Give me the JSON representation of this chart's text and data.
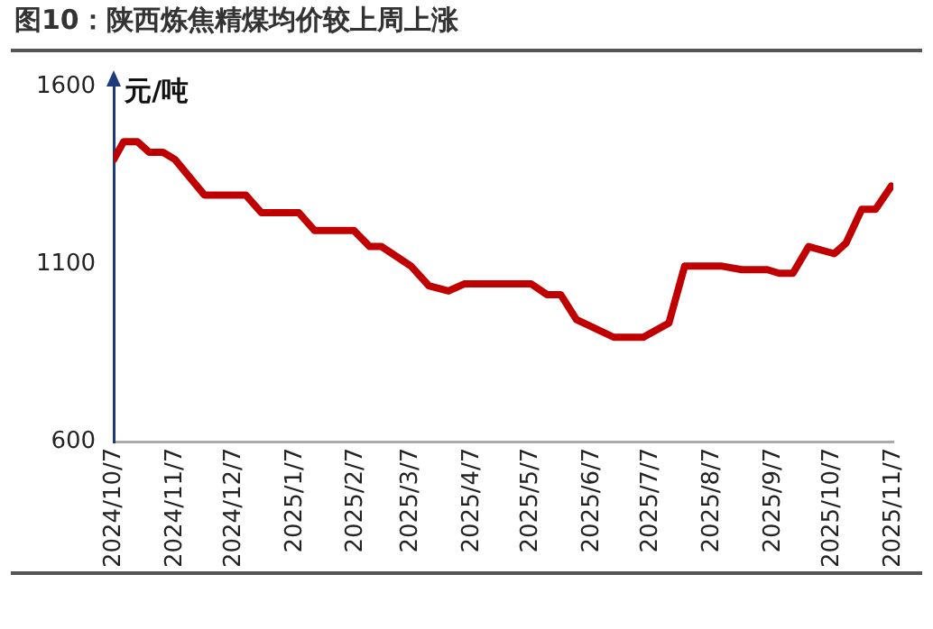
{
  "chart_data": {
    "type": "line",
    "title": "图10：陕西炼焦精煤均价较上周上涨",
    "ylabel": "元/吨",
    "x": [
      "2024-10-07",
      "2024-10-12",
      "2024-10-19",
      "2024-10-25",
      "2024-11-01",
      "2024-11-07",
      "2024-11-22",
      "2024-12-13",
      "2024-12-21",
      "2025-01-09",
      "2025-01-17",
      "2025-02-06",
      "2025-02-14",
      "2025-02-20",
      "2025-03-07",
      "2025-03-16",
      "2025-03-26",
      "2025-04-03",
      "2025-05-07",
      "2025-05-15",
      "2025-05-22",
      "2025-05-30",
      "2025-06-18",
      "2025-07-03",
      "2025-07-16",
      "2025-07-24",
      "2025-08-12",
      "2025-08-22",
      "2025-09-04",
      "2025-09-10",
      "2025-09-17",
      "2025-09-25",
      "2025-10-08",
      "2025-10-14",
      "2025-10-22",
      "2025-10-29",
      "2025-11-06"
    ],
    "series": [
      {
        "color": "#c00000",
        "values": [
          1395,
          1445,
          1445,
          1415,
          1415,
          1395,
          1295,
          1295,
          1245,
          1245,
          1195,
          1195,
          1150,
          1150,
          1095,
          1040,
          1025,
          1045,
          1045,
          1015,
          1015,
          945,
          895,
          895,
          935,
          1095,
          1095,
          1085,
          1085,
          1075,
          1075,
          1150,
          1130,
          1160,
          1255,
          1255,
          1320
        ]
      }
    ],
    "xlim": [
      "2024-10-07",
      "2025-11-07"
    ],
    "xticks": [
      {
        "value": "2024-10-07",
        "label": "2024/10/7"
      },
      {
        "value": "2024-11-07",
        "label": "2024/11/7"
      },
      {
        "value": "2024-12-07",
        "label": "2024/12/7"
      },
      {
        "value": "2025-01-07",
        "label": "2025/1/7"
      },
      {
        "value": "2025-02-07",
        "label": "2025/2/7"
      },
      {
        "value": "2025-03-07",
        "label": "2025/3/7"
      },
      {
        "value": "2025-04-07",
        "label": "2025/4/7"
      },
      {
        "value": "2025-05-07",
        "label": "2025/5/7"
      },
      {
        "value": "2025-06-07",
        "label": "2025/6/7"
      },
      {
        "value": "2025-07-07",
        "label": "2025/7/7"
      },
      {
        "value": "2025-08-07",
        "label": "2025/8/7"
      },
      {
        "value": "2025-09-07",
        "label": "2025/9/7"
      },
      {
        "value": "2025-10-07",
        "label": "2025/10/7"
      },
      {
        "value": "2025-11-07",
        "label": "2025/11/7"
      }
    ],
    "ylim": [
      600,
      1600
    ],
    "yticks": [
      600,
      1100,
      1600
    ],
    "grid": false,
    "legend": false,
    "marker": "none",
    "line_style": "solid"
  }
}
